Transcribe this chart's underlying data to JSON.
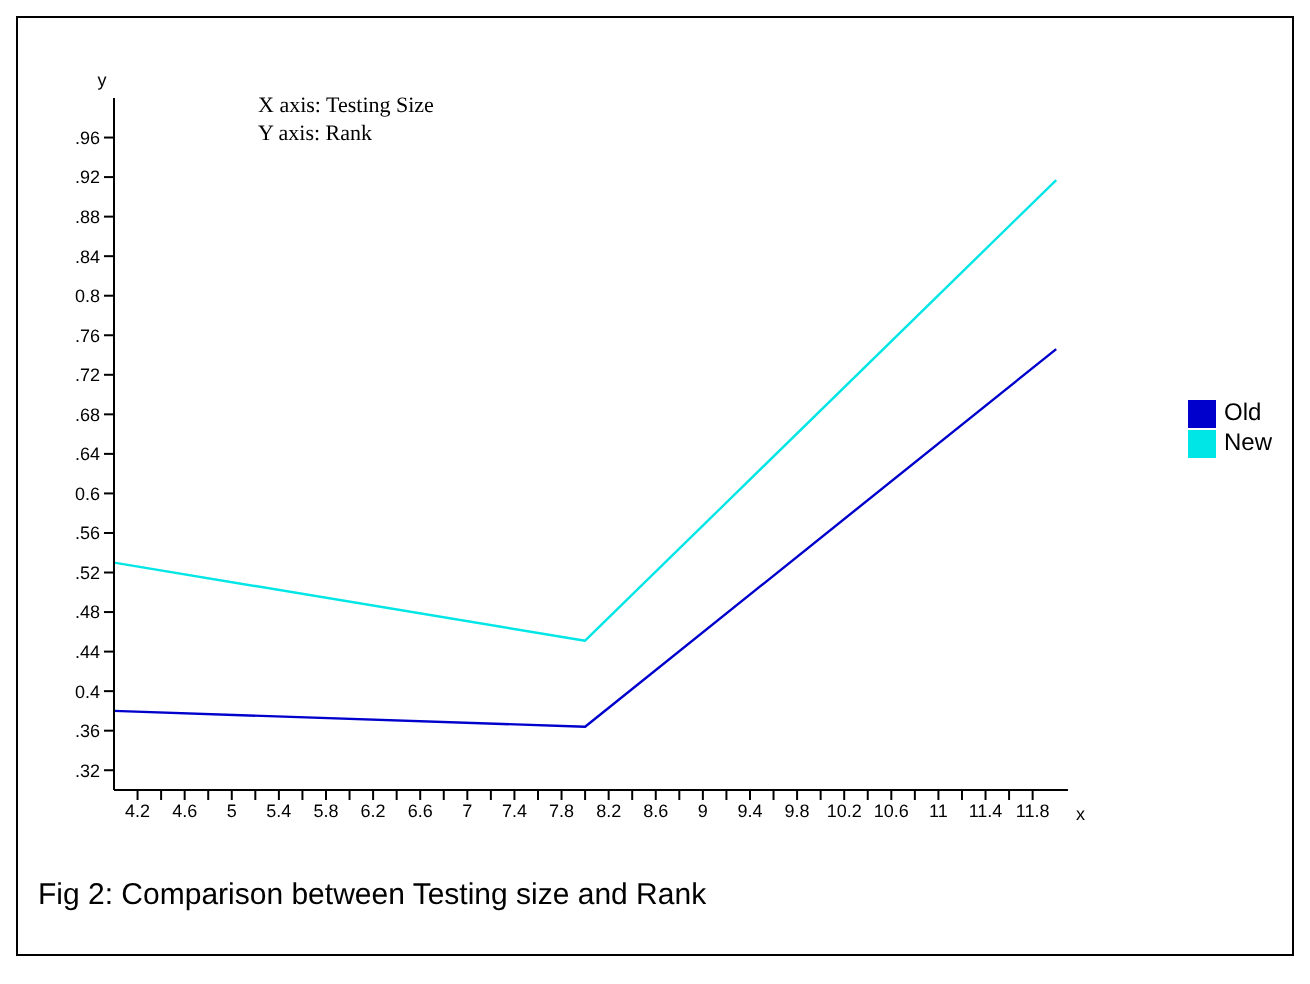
{
  "chart_data": {
    "type": "line",
    "xlabel": "x",
    "ylabel": "y",
    "annotations": [
      "X axis: Testing Size",
      "Y axis: Rank",
      "Fig 2: Comparison between Testing size and Rank"
    ],
    "x": [
      4,
      8,
      12
    ],
    "series": [
      {
        "name": "Old",
        "color": "#0000cc",
        "values": [
          0.38,
          0.364,
          0.746
        ]
      },
      {
        "name": "New",
        "color": "#00e5e5",
        "values": [
          0.53,
          0.451,
          0.917
        ]
      }
    ],
    "xlim": [
      4,
      12.1
    ],
    "xticks": [
      4.2,
      {
        "value": 4.4,
        "label": null
      },
      4.6,
      {
        "value": 4.8,
        "label": null
      },
      5,
      {
        "value": 5.2,
        "label": null
      },
      5.4,
      {
        "value": 5.6,
        "label": null
      },
      5.8,
      {
        "value": 6,
        "label": null
      },
      6.2,
      {
        "value": 6.4,
        "label": null
      },
      6.6,
      {
        "value": 6.8,
        "label": null
      },
      7,
      {
        "value": 7.2,
        "label": null
      },
      7.4,
      {
        "value": 7.6,
        "label": null
      },
      7.8,
      {
        "value": 8,
        "label": null
      },
      8.2,
      {
        "value": 8.4,
        "label": null
      },
      8.6,
      {
        "value": 8.8,
        "label": null
      },
      9,
      {
        "value": 9.2,
        "label": null
      },
      9.4,
      {
        "value": 9.6,
        "label": null
      },
      9.8,
      {
        "value": 10,
        "label": null
      },
      10.2,
      {
        "value": 10.4,
        "label": null
      },
      10.6,
      {
        "value": 10.8,
        "label": null
      },
      11,
      {
        "value": 11.2,
        "label": null
      },
      11.4,
      {
        "value": 11.6,
        "label": null
      },
      11.8
    ],
    "ylim": [
      0.3,
      1.0
    ],
    "yticks": [
      {
        "value": 0.32,
        "label": ".32"
      },
      {
        "value": 0.36,
        "label": ".36"
      },
      {
        "value": 0.4,
        "label": "0.4"
      },
      {
        "value": 0.44,
        "label": ".44"
      },
      {
        "value": 0.48,
        "label": ".48"
      },
      {
        "value": 0.52,
        "label": ".52"
      },
      {
        "value": 0.56,
        "label": ".56"
      },
      {
        "value": 0.6,
        "label": "0.6"
      },
      {
        "value": 0.64,
        "label": ".64"
      },
      {
        "value": 0.68,
        "label": ".68"
      },
      {
        "value": 0.72,
        "label": ".72"
      },
      {
        "value": 0.76,
        "label": ".76"
      },
      {
        "value": 0.8,
        "label": "0.8"
      },
      {
        "value": 0.84,
        "label": ".84"
      },
      {
        "value": 0.88,
        "label": ".88"
      },
      {
        "value": 0.92,
        "label": ".92"
      },
      {
        "value": 0.96,
        "label": ".96"
      }
    ],
    "grid": false,
    "legend": "right",
    "marker": "none",
    "line_style": "solid"
  }
}
